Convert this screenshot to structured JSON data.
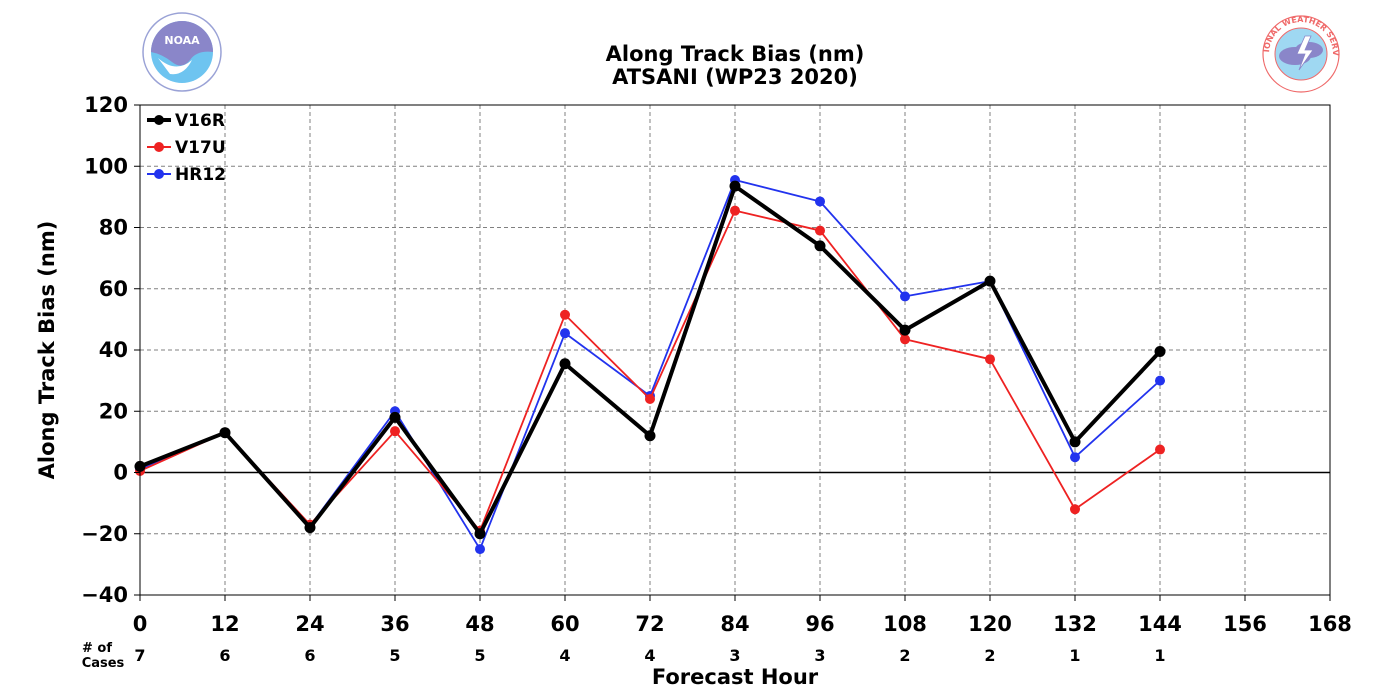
{
  "colors": {
    "V16R": "#000000",
    "V17U": "#ee2222",
    "HR12": "#2233ee",
    "grid": "#808080",
    "noaa_dark": "#8a86c9",
    "noaa_light": "#6ec4f0",
    "nws_red": "#ef6a6a"
  },
  "logos": {
    "noaa_name": "NOAA",
    "nws_name": "NATIONAL WEATHER SERVICE"
  },
  "chart_data": {
    "type": "line",
    "title": "Along Track Bias (nm)",
    "subtitle": "ATSANI (WP23 2020)",
    "xlabel": "Forecast Hour",
    "ylabel": "Along Track Bias (nm)",
    "xlim": [
      0,
      168
    ],
    "ylim": [
      -40,
      120
    ],
    "xticks": [
      0,
      12,
      24,
      36,
      48,
      60,
      72,
      84,
      96,
      108,
      120,
      132,
      144,
      156,
      168
    ],
    "yticks": [
      -40,
      -20,
      0,
      20,
      40,
      60,
      80,
      100,
      120
    ],
    "grid": true,
    "legend_position": "top-left",
    "cases_label": [
      "# of",
      "Cases"
    ],
    "cases": [
      7,
      6,
      6,
      5,
      5,
      4,
      4,
      3,
      3,
      2,
      2,
      1,
      1
    ],
    "x": [
      0,
      12,
      24,
      36,
      48,
      60,
      72,
      84,
      96,
      108,
      120,
      132,
      144
    ],
    "series": [
      {
        "name": "V16R",
        "values": [
          2,
          13,
          -18,
          18,
          -20,
          35.5,
          12,
          93.5,
          74,
          46.5,
          62.5,
          10,
          39.5
        ]
      },
      {
        "name": "V17U",
        "values": [
          0.5,
          13,
          -17,
          13.5,
          -19,
          51.5,
          24,
          85.5,
          79,
          43.5,
          37,
          -12,
          7.5
        ]
      },
      {
        "name": "HR12",
        "values": [
          1,
          13,
          -17.5,
          20,
          -25,
          45.5,
          25,
          95.5,
          88.5,
          57.5,
          62.5,
          5,
          30
        ]
      }
    ]
  }
}
